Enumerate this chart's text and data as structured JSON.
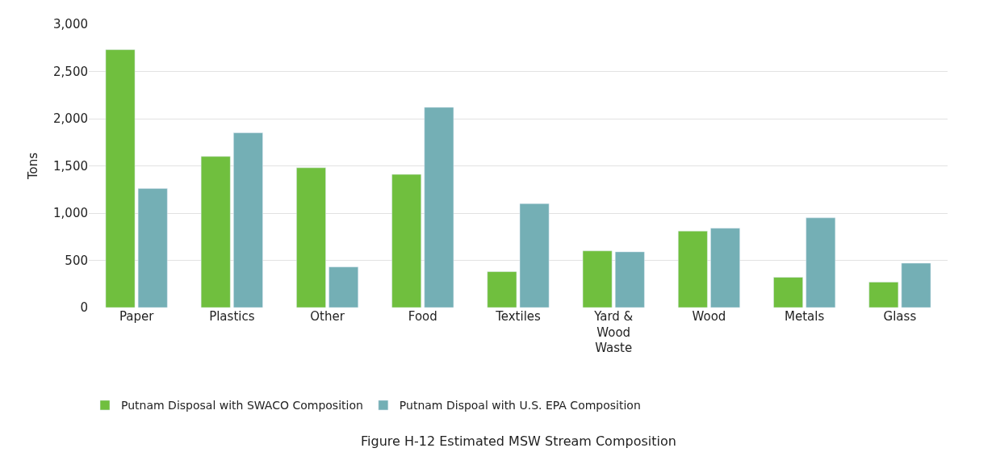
{
  "chart_data": {
    "type": "bar",
    "title": "Figure H-12 Estimated MSW Stream Composition",
    "ylabel": "Tons",
    "categories": [
      "Paper",
      "Plastics",
      "Other",
      "Food",
      "Textiles",
      "Yard & Wood Waste",
      "Wood",
      "Metals",
      "Glass"
    ],
    "series": [
      {
        "name": "Putnam Disposal with SWACO Composition",
        "color": "#70bf3e",
        "values": [
          2730,
          1600,
          1480,
          1410,
          380,
          600,
          810,
          320,
          270
        ]
      },
      {
        "name": "Putnam Dispoal with U.S. EPA Composition",
        "color": "#74afb5",
        "values": [
          1260,
          1850,
          430,
          2120,
          1100,
          590,
          840,
          950,
          470
        ]
      }
    ],
    "ylim": [
      0,
      3000
    ],
    "yticks": [
      {
        "value": 0,
        "label": "0"
      },
      {
        "value": 500,
        "label": "500"
      },
      {
        "value": 1000,
        "label": "1,000"
      },
      {
        "value": 1500,
        "label": "1,500"
      },
      {
        "value": 2000,
        "label": "2,000"
      },
      {
        "value": 2500,
        "label": "2,500"
      },
      {
        "value": 3000,
        "label": "3,000"
      }
    ],
    "grid": "y",
    "legend": "bottom"
  }
}
